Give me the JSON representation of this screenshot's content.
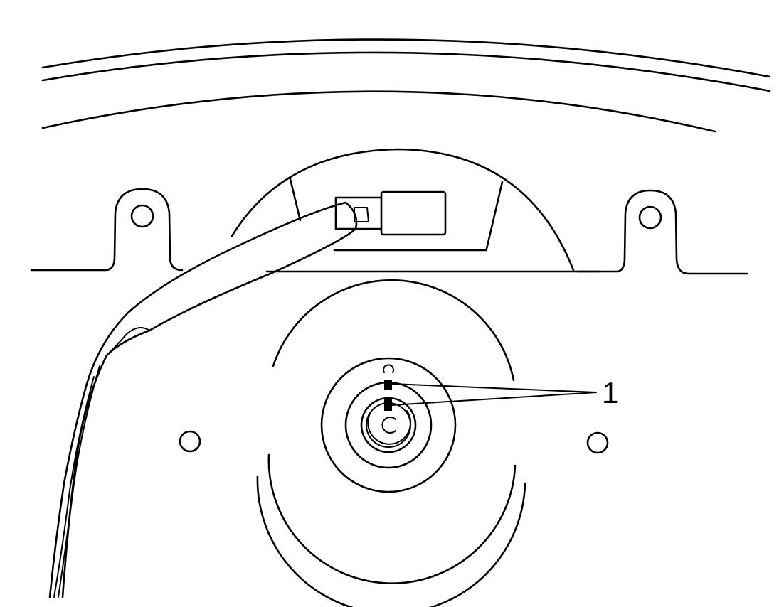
{
  "diagram": {
    "callouts": [
      {
        "label": "1"
      }
    ]
  }
}
